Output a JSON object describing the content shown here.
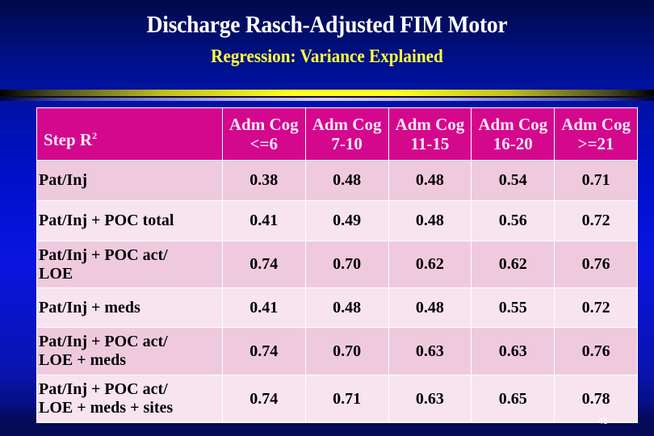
{
  "slide": {
    "title": "Discharge Rasch-Adjusted FIM Motor",
    "subtitle": "Regression: Variance Explained",
    "page_number": "45",
    "colors": {
      "background": "#0010c8",
      "title": "#ffffff",
      "subtitle": "#ffff40",
      "header_fill": "#d4088c",
      "row_odd_fill": "#efcadd",
      "row_even_fill": "#f7e4ee",
      "accent_bar": "#ffff20"
    }
  },
  "table": {
    "corner_label": "Step R",
    "corner_superscript": "2",
    "columns": [
      {
        "line1": "Adm Cog",
        "line2": "<=6"
      },
      {
        "line1": "Adm Cog",
        "line2": "7-10"
      },
      {
        "line1": "Adm Cog",
        "line2": "11-15"
      },
      {
        "line1": "Adm Cog",
        "line2": "16-20"
      },
      {
        "line1": "Adm Cog",
        "line2": ">=21"
      }
    ],
    "rows": [
      {
        "label_line1": "Pat/Inj",
        "label_line2": "",
        "values": [
          "0.38",
          "0.48",
          "0.48",
          "0.54",
          "0.71"
        ]
      },
      {
        "label_line1": "Pat/Inj + POC total",
        "label_line2": "",
        "values": [
          "0.41",
          "0.49",
          "0.48",
          "0.56",
          "0.72"
        ]
      },
      {
        "label_line1": "Pat/Inj + POC act/",
        "label_line2": "LOE",
        "values": [
          "0.74",
          "0.70",
          "0.62",
          "0.62",
          "0.76"
        ]
      },
      {
        "label_line1": "Pat/Inj + meds",
        "label_line2": "",
        "values": [
          "0.41",
          "0.48",
          "0.48",
          "0.55",
          "0.72"
        ]
      },
      {
        "label_line1": "Pat/Inj + POC act/",
        "label_line2": "LOE + meds",
        "values": [
          "0.74",
          "0.70",
          "0.63",
          "0.63",
          "0.76"
        ]
      },
      {
        "label_line1": "Pat/Inj + POC act/",
        "label_line2": "LOE + meds + sites",
        "values": [
          "0.74",
          "0.71",
          "0.63",
          "0.65",
          "0.78"
        ]
      }
    ]
  }
}
